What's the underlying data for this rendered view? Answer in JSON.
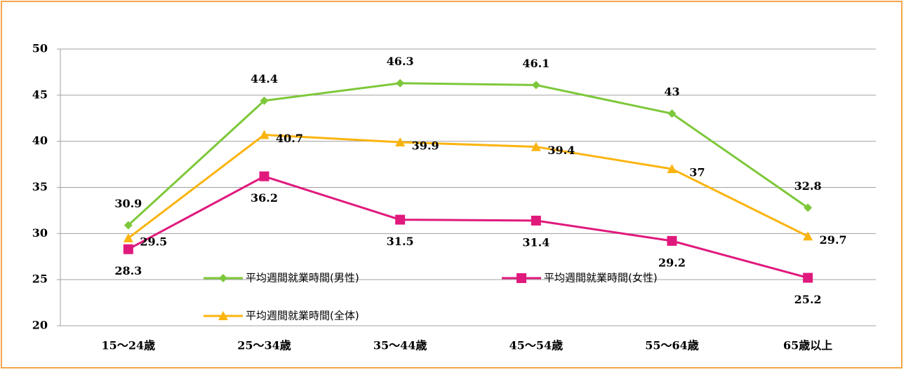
{
  "chart_data": {
    "type": "line",
    "categories": [
      "15～24歳",
      "25～34歳",
      "35～44歳",
      "45～54歳",
      "55～64歳",
      "65歳以上"
    ],
    "series": [
      {
        "name": "平均週間就業時間(男性)",
        "color": "#7dc83a",
        "marker": "diamond",
        "values": [
          30.9,
          44.4,
          46.3,
          46.1,
          43,
          32.8
        ]
      },
      {
        "name": "平均週間就業時間(女性)",
        "color": "#e0197d",
        "marker": "square",
        "values": [
          28.3,
          36.2,
          31.5,
          31.4,
          29.2,
          25.2
        ]
      },
      {
        "name": "平均週間就業時間(全体)",
        "color": "#fbb40f",
        "marker": "triangle",
        "values": [
          29.5,
          40.7,
          39.9,
          39.4,
          37,
          29.7
        ]
      }
    ],
    "ylim": [
      20,
      50
    ],
    "yticks": [
      20,
      25,
      30,
      35,
      40,
      45,
      50
    ],
    "grid": true
  }
}
